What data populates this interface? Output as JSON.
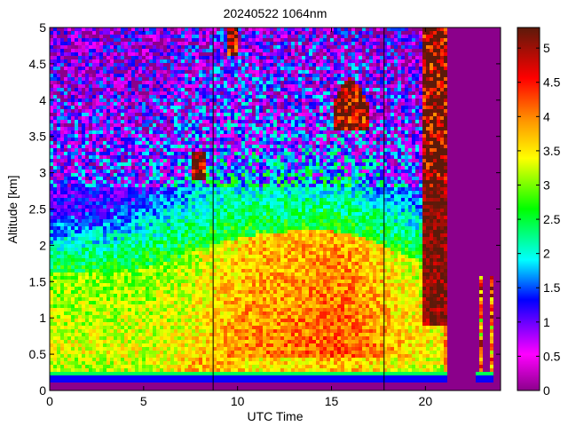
{
  "chart_data": {
    "type": "heatmap",
    "title": "20240522 1064nm",
    "xlabel": "UTC Time",
    "ylabel": "Altitude [km]",
    "xlim": [
      0,
      24
    ],
    "ylim": [
      0,
      5
    ],
    "clim": [
      0,
      5.3
    ],
    "x_ticks": [
      {
        "value": 0,
        "label": "0"
      },
      {
        "value": 5,
        "label": "5"
      },
      {
        "value": 10,
        "label": "10"
      },
      {
        "value": 15,
        "label": "15"
      },
      {
        "value": 20,
        "label": "20"
      }
    ],
    "y_ticks": [
      {
        "value": 0,
        "label": "0"
      },
      {
        "value": 0.5,
        "label": "0.5"
      },
      {
        "value": 1,
        "label": "1"
      },
      {
        "value": 1.5,
        "label": "1.5"
      },
      {
        "value": 2,
        "label": "2"
      },
      {
        "value": 2.5,
        "label": "2.5"
      },
      {
        "value": 3,
        "label": "3"
      },
      {
        "value": 3.5,
        "label": "3.5"
      },
      {
        "value": 4,
        "label": "4"
      },
      {
        "value": 4.5,
        "label": "4.5"
      },
      {
        "value": 5,
        "label": "5"
      }
    ],
    "colorbar_ticks": [
      {
        "value": 0,
        "label": "0"
      },
      {
        "value": 0.5,
        "label": "0.5"
      },
      {
        "value": 1,
        "label": "1"
      },
      {
        "value": 1.5,
        "label": "1.5"
      },
      {
        "value": 2,
        "label": "2"
      },
      {
        "value": 2.5,
        "label": "2.5"
      },
      {
        "value": 3,
        "label": "3"
      },
      {
        "value": 3.5,
        "label": "3.5"
      },
      {
        "value": 4,
        "label": "4"
      },
      {
        "value": 4.5,
        "label": "4.5"
      },
      {
        "value": 5,
        "label": "5"
      }
    ],
    "colormap_stops": [
      "#8b008b",
      "#ff00ff",
      "#0000ff",
      "#00ffff",
      "#00ff00",
      "#ffff00",
      "#ff9900",
      "#ff0000",
      "#5c1a0a"
    ],
    "background_color": "#8b008b",
    "data_end_hour": 24.0,
    "vertical_lines_hours": [
      8.7,
      17.8
    ]
  }
}
